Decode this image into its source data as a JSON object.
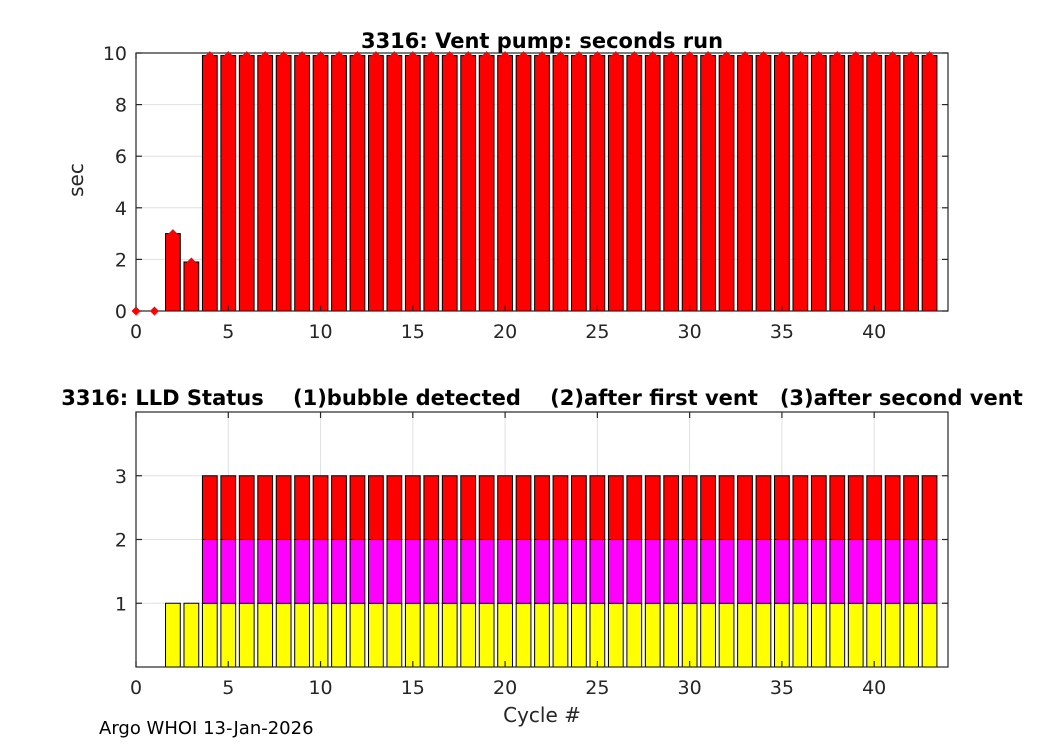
{
  "figure": {
    "footer_text": "Argo WHOI 13-Jan-2026"
  },
  "chart_data": [
    {
      "type": "bar",
      "title": "3316: Vent pump: seconds run",
      "xlabel": "",
      "ylabel": "sec",
      "xlim": [
        0,
        44
      ],
      "ylim": [
        0,
        10
      ],
      "xticks": [
        0,
        5,
        10,
        15,
        20,
        25,
        30,
        35,
        40
      ],
      "yticks": [
        0,
        2,
        4,
        6,
        8,
        10
      ],
      "grid": true,
      "legend": "none",
      "bar_color": "#ff0000",
      "bar_edge_color": "#000000",
      "marker": {
        "shape": "diamond",
        "color": "#ff0000",
        "size": 9
      },
      "x": [
        0,
        1,
        2,
        3,
        4,
        5,
        6,
        7,
        8,
        9,
        10,
        11,
        12,
        13,
        14,
        15,
        16,
        17,
        18,
        19,
        20,
        21,
        22,
        23,
        24,
        25,
        26,
        27,
        28,
        29,
        30,
        31,
        32,
        33,
        34,
        35,
        36,
        37,
        38,
        39,
        40,
        41,
        42,
        43
      ],
      "values": [
        0,
        0,
        3,
        1.9,
        9.9,
        9.9,
        9.9,
        9.9,
        9.9,
        9.9,
        9.9,
        9.9,
        9.9,
        9.9,
        9.9,
        9.9,
        9.9,
        9.9,
        9.9,
        9.9,
        9.9,
        9.9,
        9.9,
        9.9,
        9.9,
        9.9,
        9.9,
        9.9,
        9.9,
        9.9,
        9.9,
        9.9,
        9.9,
        9.9,
        9.9,
        9.9,
        9.9,
        9.9,
        9.9,
        9.9,
        9.9,
        9.9,
        9.9,
        9.9
      ]
    },
    {
      "type": "stacked-bar",
      "title": "3316: LLD Status    (1)bubble detected    (2)after first vent   (3)after second vent",
      "xlabel": "Cycle #",
      "ylabel": "",
      "xlim": [
        0,
        44
      ],
      "ylim": [
        0,
        4
      ],
      "xticks": [
        0,
        5,
        10,
        15,
        20,
        25,
        30,
        35,
        40
      ],
      "yticks": [
        1,
        2,
        3
      ],
      "grid": true,
      "legend": "none",
      "bar_edge_color": "#000000",
      "x": [
        0,
        1,
        2,
        3,
        4,
        5,
        6,
        7,
        8,
        9,
        10,
        11,
        12,
        13,
        14,
        15,
        16,
        17,
        18,
        19,
        20,
        21,
        22,
        23,
        24,
        25,
        26,
        27,
        28,
        29,
        30,
        31,
        32,
        33,
        34,
        35,
        36,
        37,
        38,
        39,
        40,
        41,
        42,
        43
      ],
      "series": [
        {
          "name": "bubble detected",
          "color": "#ffff00",
          "values": [
            0,
            0,
            1,
            1,
            1,
            1,
            1,
            1,
            1,
            1,
            1,
            1,
            1,
            1,
            1,
            1,
            1,
            1,
            1,
            1,
            1,
            1,
            1,
            1,
            1,
            1,
            1,
            1,
            1,
            1,
            1,
            1,
            1,
            1,
            1,
            1,
            1,
            1,
            1,
            1,
            1,
            1,
            1,
            1
          ]
        },
        {
          "name": "after first vent",
          "color": "#ff00ff",
          "values": [
            0,
            0,
            0,
            0,
            1,
            1,
            1,
            1,
            1,
            1,
            1,
            1,
            1,
            1,
            1,
            1,
            1,
            1,
            1,
            1,
            1,
            1,
            1,
            1,
            1,
            1,
            1,
            1,
            1,
            1,
            1,
            1,
            1,
            1,
            1,
            1,
            1,
            1,
            1,
            1,
            1,
            1,
            1,
            1
          ]
        },
        {
          "name": "after second vent",
          "color": "#ff0000",
          "values": [
            0,
            0,
            0,
            0,
            1,
            1,
            1,
            1,
            1,
            1,
            1,
            1,
            1,
            1,
            1,
            1,
            1,
            1,
            1,
            1,
            1,
            1,
            1,
            1,
            1,
            1,
            1,
            1,
            1,
            1,
            1,
            1,
            1,
            1,
            1,
            1,
            1,
            1,
            1,
            1,
            1,
            1,
            1,
            1
          ]
        }
      ]
    }
  ]
}
